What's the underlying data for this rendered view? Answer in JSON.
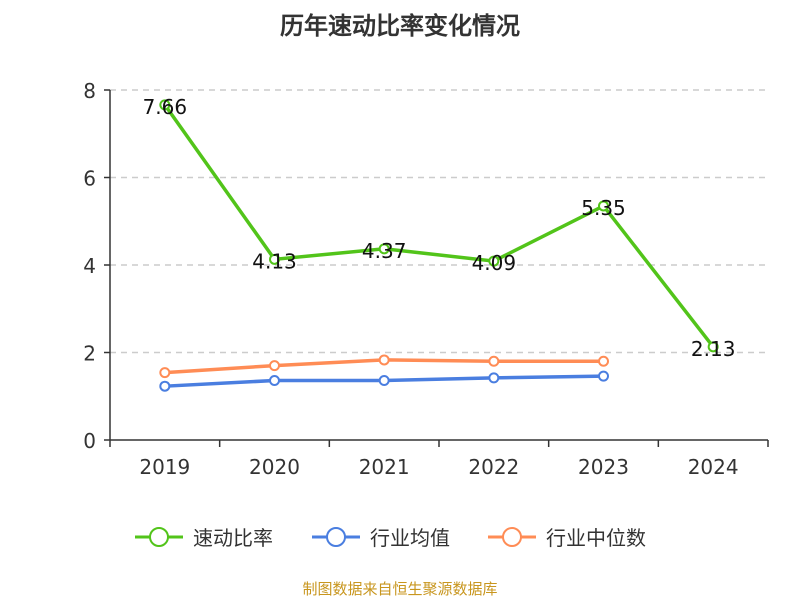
{
  "chart_data": {
    "type": "line",
    "title": "历年速动比率变化情况",
    "categories": [
      "2019",
      "2020",
      "2021",
      "2022",
      "2023",
      "2024"
    ],
    "ylim": [
      0,
      8
    ],
    "yticks": [
      0,
      2,
      4,
      6,
      8
    ],
    "grid": true,
    "legend_position": "bottom",
    "series": [
      {
        "name": "速动比率",
        "color": "#52c41a",
        "values": [
          7.66,
          4.13,
          4.37,
          4.09,
          5.35,
          2.13
        ],
        "labels": [
          "7.66",
          "4.13",
          "4.37",
          "4.09",
          "5.35",
          "2.13"
        ]
      },
      {
        "name": "行业均值",
        "color": "#4a7ee0",
        "values": [
          1.23,
          1.36,
          1.36,
          1.42,
          1.46,
          null
        ]
      },
      {
        "name": "行业中位数",
        "color": "#ff8c55",
        "values": [
          1.54,
          1.7,
          1.83,
          1.8,
          1.8,
          null
        ]
      }
    ]
  },
  "source": "制图数据来自恒生聚源数据库"
}
